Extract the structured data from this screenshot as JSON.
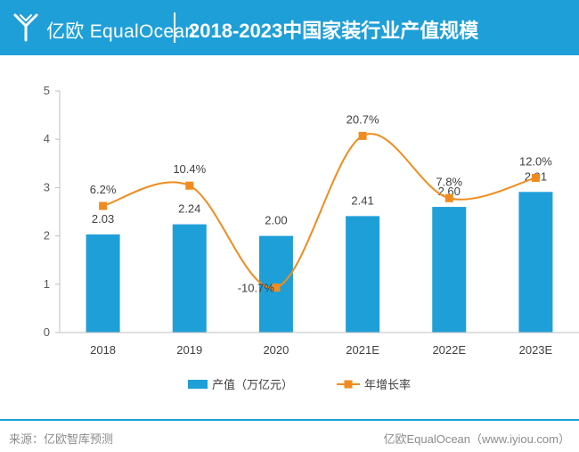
{
  "header": {
    "brand": "亿欧 EqualOcean",
    "title": "2018-2023中国家装行业产值规模"
  },
  "chart_data": {
    "type": "bar",
    "categories": [
      "2018",
      "2019",
      "2020",
      "2021E",
      "2022E",
      "2023E"
    ],
    "series": [
      {
        "name": "产值（万亿元）",
        "type": "bar",
        "axis": "left",
        "values": [
          2.03,
          2.24,
          2.0,
          2.41,
          2.6,
          2.91
        ],
        "labels": [
          "2.03",
          "2.24",
          "2.00",
          "2.41",
          "2.60",
          "2.91"
        ]
      },
      {
        "name": "年增长率",
        "type": "line",
        "axis": "right",
        "values": [
          6.2,
          10.4,
          -10.7,
          20.7,
          7.8,
          12.0
        ],
        "labels": [
          "6.2%",
          "10.4%",
          "-10.7%",
          "20.7%",
          "7.8%",
          "12.0%"
        ]
      }
    ],
    "ylim": [
      0,
      5
    ],
    "yticks": [
      "0",
      "1",
      "2",
      "3",
      "4",
      "5"
    ],
    "line_ylim": [
      -20,
      30
    ],
    "colors": {
      "bar": "#1f9fd8",
      "line": "#f08c1e"
    },
    "legend": "bottom"
  },
  "footer": {
    "source": "来源：亿欧智库预测",
    "credit": "亿欧EqualOcean（www.iyiou.com）"
  }
}
